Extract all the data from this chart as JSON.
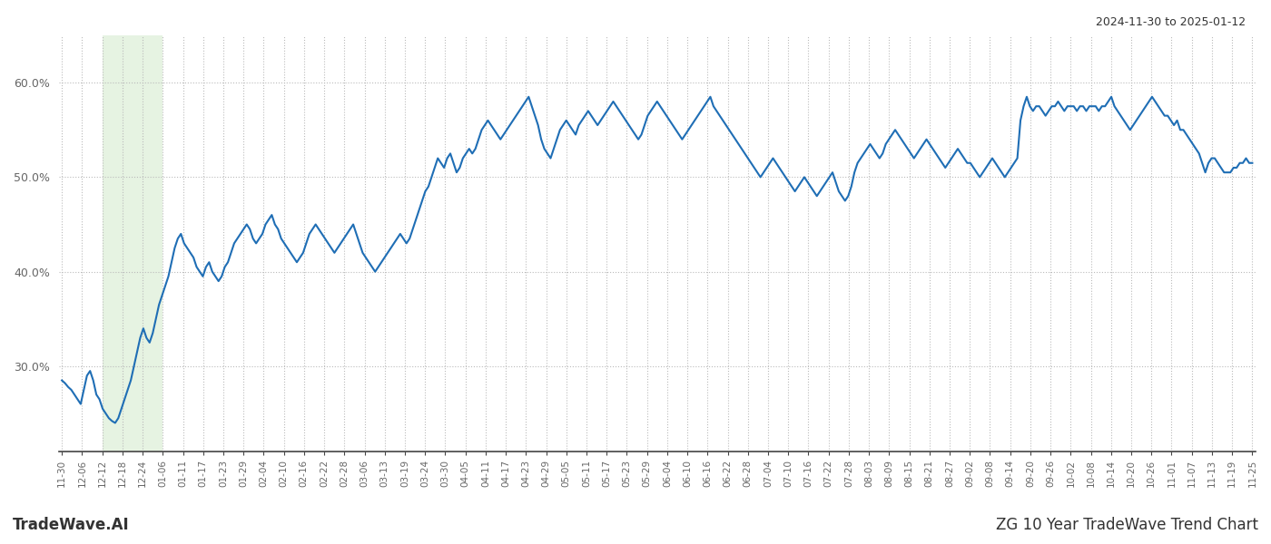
{
  "title_top_right": "2024-11-30 to 2025-01-12",
  "title_bottom_left": "TradeWave.AI",
  "title_bottom_right": "ZG 10 Year TradeWave Trend Chart",
  "line_color": "#1f6eb5",
  "line_width": 1.5,
  "background_color": "#ffffff",
  "highlight_color": "#c8e6c0",
  "highlight_alpha": 0.45,
  "grid_color": "#bbbbbb",
  "grid_style": ":",
  "ylim": [
    21,
    65
  ],
  "yticks": [
    30.0,
    40.0,
    50.0,
    60.0
  ],
  "ytick_labels": [
    "30.0%",
    "40.0%",
    "50.0%",
    "60.0%"
  ],
  "x_labels": [
    "11-30",
    "12-06",
    "12-12",
    "12-18",
    "12-24",
    "01-06",
    "01-11",
    "01-17",
    "01-23",
    "01-29",
    "02-04",
    "02-10",
    "02-16",
    "02-22",
    "02-28",
    "03-06",
    "03-13",
    "03-19",
    "03-24",
    "03-30",
    "04-05",
    "04-11",
    "04-17",
    "04-23",
    "04-29",
    "05-05",
    "05-11",
    "05-17",
    "05-23",
    "05-29",
    "06-04",
    "06-10",
    "06-16",
    "06-22",
    "06-28",
    "07-04",
    "07-10",
    "07-16",
    "07-22",
    "07-28",
    "08-03",
    "08-09",
    "08-15",
    "08-21",
    "08-27",
    "09-02",
    "09-08",
    "09-14",
    "09-20",
    "09-26",
    "10-02",
    "10-08",
    "10-14",
    "10-20",
    "10-26",
    "11-01",
    "11-07",
    "11-13",
    "11-19",
    "11-25"
  ],
  "highlight_xstart_label_idx": 2,
  "highlight_xend_label_idx": 5,
  "y_values": [
    28.5,
    28.2,
    27.8,
    27.5,
    27.0,
    26.5,
    26.0,
    27.5,
    29.0,
    29.5,
    28.5,
    27.0,
    26.5,
    25.5,
    25.0,
    24.5,
    24.2,
    24.0,
    24.5,
    25.5,
    26.5,
    27.5,
    28.5,
    30.0,
    31.5,
    33.0,
    34.0,
    33.0,
    32.5,
    33.5,
    35.0,
    36.5,
    37.5,
    38.5,
    39.5,
    41.0,
    42.5,
    43.5,
    44.0,
    43.0,
    42.5,
    42.0,
    41.5,
    40.5,
    40.0,
    39.5,
    40.5,
    41.0,
    40.0,
    39.5,
    39.0,
    39.5,
    40.5,
    41.0,
    42.0,
    43.0,
    43.5,
    44.0,
    44.5,
    45.0,
    44.5,
    43.5,
    43.0,
    43.5,
    44.0,
    45.0,
    45.5,
    46.0,
    45.0,
    44.5,
    43.5,
    43.0,
    42.5,
    42.0,
    41.5,
    41.0,
    41.5,
    42.0,
    43.0,
    44.0,
    44.5,
    45.0,
    44.5,
    44.0,
    43.5,
    43.0,
    42.5,
    42.0,
    42.5,
    43.0,
    43.5,
    44.0,
    44.5,
    45.0,
    44.0,
    43.0,
    42.0,
    41.5,
    41.0,
    40.5,
    40.0,
    40.5,
    41.0,
    41.5,
    42.0,
    42.5,
    43.0,
    43.5,
    44.0,
    43.5,
    43.0,
    43.5,
    44.5,
    45.5,
    46.5,
    47.5,
    48.5,
    49.0,
    50.0,
    51.0,
    52.0,
    51.5,
    51.0,
    52.0,
    52.5,
    51.5,
    50.5,
    51.0,
    52.0,
    52.5,
    53.0,
    52.5,
    53.0,
    54.0,
    55.0,
    55.5,
    56.0,
    55.5,
    55.0,
    54.5,
    54.0,
    54.5,
    55.0,
    55.5,
    56.0,
    56.5,
    57.0,
    57.5,
    58.0,
    58.5,
    57.5,
    56.5,
    55.5,
    54.0,
    53.0,
    52.5,
    52.0,
    53.0,
    54.0,
    55.0,
    55.5,
    56.0,
    55.5,
    55.0,
    54.5,
    55.5,
    56.0,
    56.5,
    57.0,
    56.5,
    56.0,
    55.5,
    56.0,
    56.5,
    57.0,
    57.5,
    58.0,
    57.5,
    57.0,
    56.5,
    56.0,
    55.5,
    55.0,
    54.5,
    54.0,
    54.5,
    55.5,
    56.5,
    57.0,
    57.5,
    58.0,
    57.5,
    57.0,
    56.5,
    56.0,
    55.5,
    55.0,
    54.5,
    54.0,
    54.5,
    55.0,
    55.5,
    56.0,
    56.5,
    57.0,
    57.5,
    58.0,
    58.5,
    57.5,
    57.0,
    56.5,
    56.0,
    55.5,
    55.0,
    54.5,
    54.0,
    53.5,
    53.0,
    52.5,
    52.0,
    51.5,
    51.0,
    50.5,
    50.0,
    50.5,
    51.0,
    51.5,
    52.0,
    51.5,
    51.0,
    50.5,
    50.0,
    49.5,
    49.0,
    48.5,
    49.0,
    49.5,
    50.0,
    49.5,
    49.0,
    48.5,
    48.0,
    48.5,
    49.0,
    49.5,
    50.0,
    50.5,
    49.5,
    48.5,
    48.0,
    47.5,
    48.0,
    49.0,
    50.5,
    51.5,
    52.0,
    52.5,
    53.0,
    53.5,
    53.0,
    52.5,
    52.0,
    52.5,
    53.5,
    54.0,
    54.5,
    55.0,
    54.5,
    54.0,
    53.5,
    53.0,
    52.5,
    52.0,
    52.5,
    53.0,
    53.5,
    54.0,
    53.5,
    53.0,
    52.5,
    52.0,
    51.5,
    51.0,
    51.5,
    52.0,
    52.5,
    53.0,
    52.5,
    52.0,
    51.5,
    51.5,
    51.0,
    50.5,
    50.0,
    50.5,
    51.0,
    51.5,
    52.0,
    51.5,
    51.0,
    50.5,
    50.0,
    50.5,
    51.0,
    51.5,
    52.0,
    56.0,
    57.5,
    58.5,
    57.5,
    57.0,
    57.5,
    57.5,
    57.0,
    56.5,
    57.0,
    57.5,
    57.5,
    58.0,
    57.5,
    57.0,
    57.5,
    57.5,
    57.5,
    57.0,
    57.5,
    57.5,
    57.0,
    57.5,
    57.5,
    57.5,
    57.0,
    57.5,
    57.5,
    58.0,
    58.5,
    57.5,
    57.0,
    56.5,
    56.0,
    55.5,
    55.0,
    55.5,
    56.0,
    56.5,
    57.0,
    57.5,
    58.0,
    58.5,
    58.0,
    57.5,
    57.0,
    56.5,
    56.5,
    56.0,
    55.5,
    56.0,
    55.0,
    55.0,
    54.5,
    54.0,
    53.5,
    53.0,
    52.5,
    51.5,
    50.5,
    51.5,
    52.0,
    52.0,
    51.5,
    51.0,
    50.5,
    50.5,
    50.5,
    51.0,
    51.0,
    51.5,
    51.5,
    52.0,
    51.5,
    51.5
  ]
}
